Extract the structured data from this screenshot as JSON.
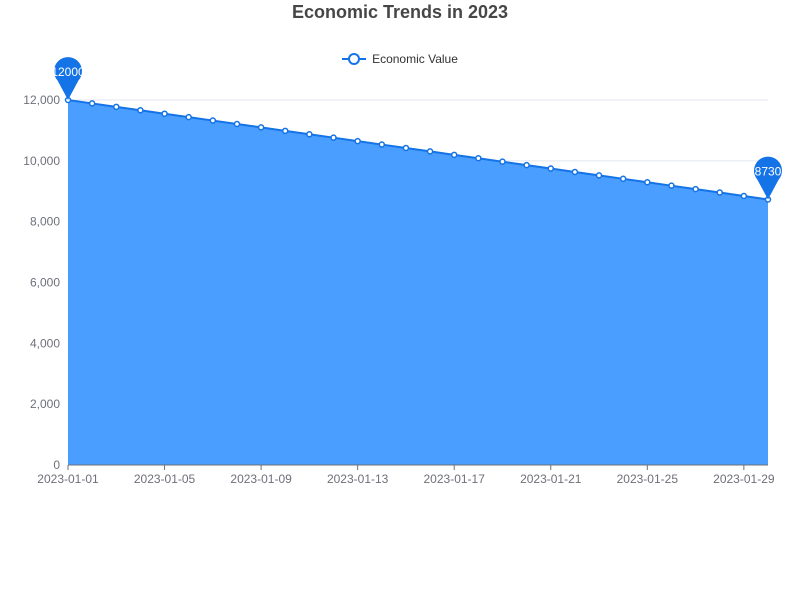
{
  "chart_data": {
    "type": "area",
    "title": "Economic Trends in 2023",
    "xlabel": "",
    "ylabel": "",
    "ylim": [
      0,
      12000
    ],
    "y_ticks": [
      0,
      2000,
      4000,
      6000,
      8000,
      10000,
      12000
    ],
    "y_tick_labels": [
      "0",
      "2,000",
      "4,000",
      "6,000",
      "8,000",
      "10,000",
      "12,000"
    ],
    "x": [
      "2023-01-01",
      "2023-01-02",
      "2023-01-03",
      "2023-01-04",
      "2023-01-05",
      "2023-01-06",
      "2023-01-07",
      "2023-01-08",
      "2023-01-09",
      "2023-01-10",
      "2023-01-11",
      "2023-01-12",
      "2023-01-13",
      "2023-01-14",
      "2023-01-15",
      "2023-01-16",
      "2023-01-17",
      "2023-01-18",
      "2023-01-19",
      "2023-01-20",
      "2023-01-21",
      "2023-01-22",
      "2023-01-23",
      "2023-01-24",
      "2023-01-25",
      "2023-01-26",
      "2023-01-27",
      "2023-01-28",
      "2023-01-29",
      "2023-01-30"
    ],
    "x_tick_labels": [
      "2023-01-01",
      "2023-01-05",
      "2023-01-09",
      "2023-01-13",
      "2023-01-17",
      "2023-01-21",
      "2023-01-25",
      "2023-01-29"
    ],
    "series": [
      {
        "name": "Economic Value",
        "values": [
          12000,
          11887,
          11775,
          11662,
          11549,
          11437,
          11324,
          11211,
          11099,
          10986,
          10873,
          10761,
          10648,
          10535,
          10423,
          10310,
          10197,
          10085,
          9972,
          9859,
          9747,
          9634,
          9521,
          9409,
          9296,
          9183,
          9071,
          8958,
          8845,
          8730
        ]
      }
    ],
    "markers": [
      {
        "label": "12000",
        "x": "2023-01-01",
        "value": 12000
      },
      {
        "label": "8730",
        "x": "2023-01-30",
        "value": 8730
      }
    ],
    "grid": true,
    "legend_position": "top-center",
    "colors": {
      "line": "#1473e6",
      "area": "#4a9eff",
      "marker": "#1473e6",
      "grid": "#e0e6f1",
      "axis": "#6e7079"
    }
  }
}
